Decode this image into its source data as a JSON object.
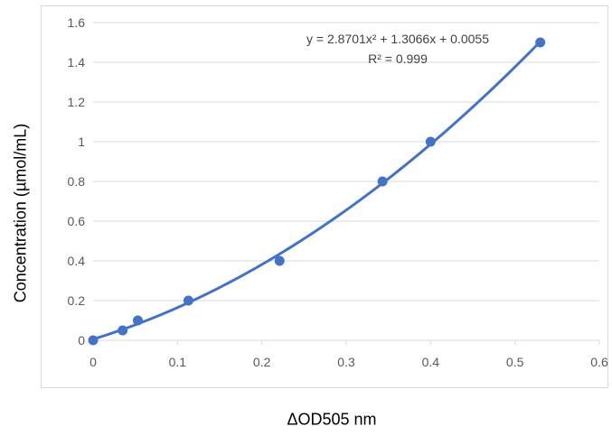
{
  "chart_data": {
    "type": "scatter",
    "xlabel": "ΔOD505 nm",
    "ylabel": "Concentration (µmol/mL)",
    "xlim": [
      0,
      0.6
    ],
    "ylim": [
      0,
      1.6
    ],
    "x_ticks": [
      "0",
      "0.1",
      "0.2",
      "0.3",
      "0.4",
      "0.5",
      "0.6"
    ],
    "y_ticks": [
      "0",
      "0.2",
      "0.4",
      "0.6",
      "0.8",
      "1",
      "1.2",
      "1.4",
      "1.6"
    ],
    "grid": "horizontal",
    "series": [
      {
        "color": "#4472c4",
        "points": [
          {
            "x": 0.0,
            "y": 0.0
          },
          {
            "x": 0.035,
            "y": 0.05
          },
          {
            "x": 0.053,
            "y": 0.1
          },
          {
            "x": 0.113,
            "y": 0.2
          },
          {
            "x": 0.221,
            "y": 0.4
          },
          {
            "x": 0.343,
            "y": 0.8
          },
          {
            "x": 0.4,
            "y": 1.0
          },
          {
            "x": 0.53,
            "y": 1.5
          }
        ]
      }
    ],
    "trendline": {
      "type": "polynomial",
      "coefficients": [
        2.8701,
        1.3066,
        0.0055
      ],
      "x_range": [
        0,
        0.53
      ],
      "color": "#4472c4"
    },
    "annotations": {
      "equation": "y = 2.8701x² + 1.3066x + 0.0055",
      "r_squared": "R² = 0.999"
    }
  }
}
